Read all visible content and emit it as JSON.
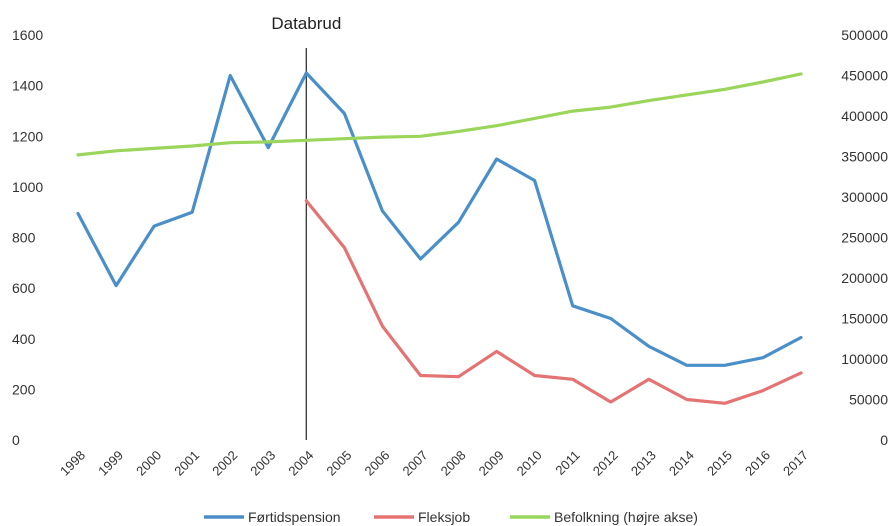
{
  "chart_data": {
    "type": "line",
    "title": "",
    "xlabel": "",
    "ylabel": "",
    "categories": [
      "1998",
      "1999",
      "2000",
      "2001",
      "2002",
      "2003",
      "2004",
      "2005",
      "2006",
      "2007",
      "2008",
      "2009",
      "2010",
      "2011",
      "2012",
      "2013",
      "2014",
      "2015",
      "2016",
      "2017"
    ],
    "ylim_left": [
      0,
      1600
    ],
    "yticks_left": [
      "0",
      "200",
      "400",
      "600",
      "800",
      "1000",
      "1200",
      "1400",
      "1600"
    ],
    "ylim_right": [
      0,
      500000
    ],
    "yticks_right": [
      "0",
      "50000",
      "100000",
      "150000",
      "200000",
      "250000",
      "300000",
      "350000",
      "400000",
      "450000",
      "500000"
    ],
    "grid": false,
    "legend_position": "bottom",
    "annotation": {
      "label": "Databrud",
      "x": "2004"
    },
    "series": [
      {
        "name": "Førtidspension",
        "axis": "left",
        "color": "#4a8fc9",
        "values": [
          895,
          610,
          845,
          900,
          1440,
          1155,
          1450,
          1290,
          905,
          715,
          860,
          1110,
          1025,
          530,
          480,
          370,
          295,
          295,
          325,
          405
        ]
      },
      {
        "name": "Fleksjob",
        "axis": "left",
        "color": "#e57373",
        "values": [
          null,
          null,
          null,
          null,
          null,
          null,
          945,
          760,
          450,
          255,
          250,
          350,
          255,
          240,
          150,
          240,
          160,
          145,
          195,
          265
        ]
      },
      {
        "name": "Befolkning (højre akse)",
        "axis": "right",
        "color": "#9bd55b",
        "values": [
          352000,
          357000,
          360000,
          363000,
          367000,
          368000,
          370000,
          372000,
          374000,
          375000,
          381000,
          388000,
          397000,
          406000,
          411000,
          419000,
          426000,
          433000,
          442000,
          452000
        ]
      }
    ]
  }
}
